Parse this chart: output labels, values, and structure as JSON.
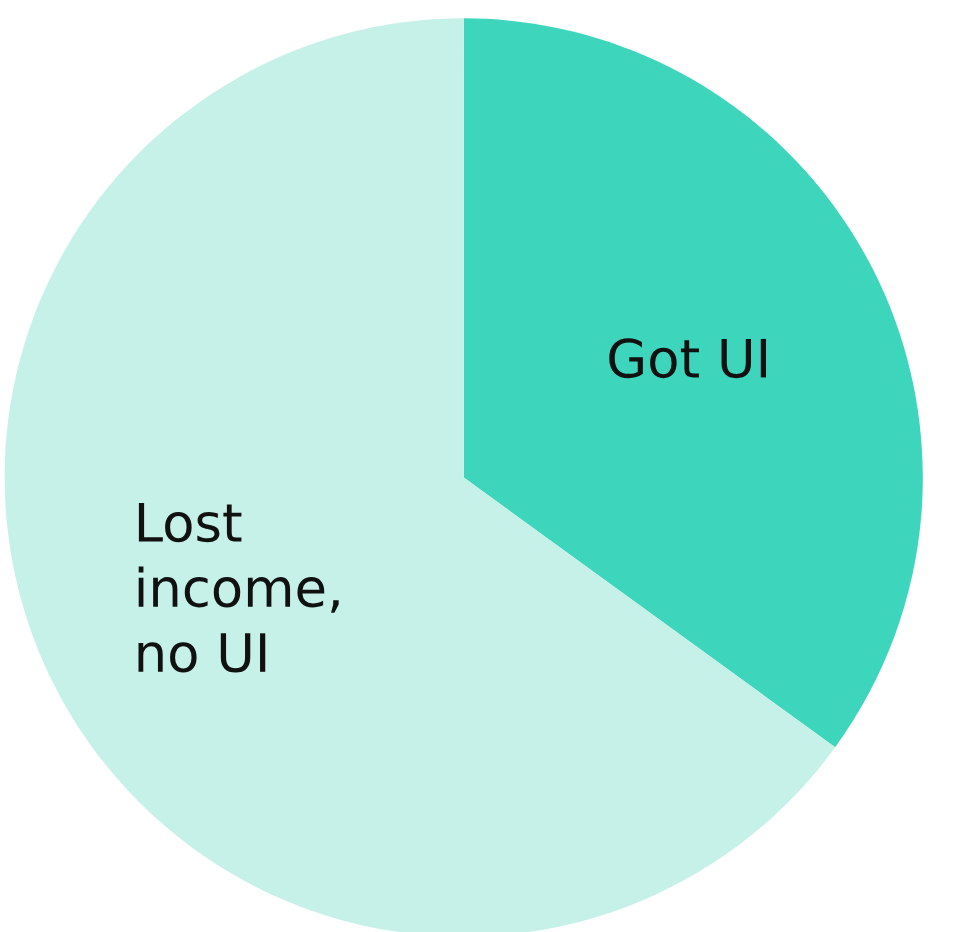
{
  "chart_data": {
    "type": "pie",
    "categories": [
      "Got UI",
      "Lost\nincome,\nno UI"
    ],
    "values": [
      35,
      65
    ],
    "colors": [
      "#3dd6bc",
      "#c6f1e8"
    ]
  }
}
